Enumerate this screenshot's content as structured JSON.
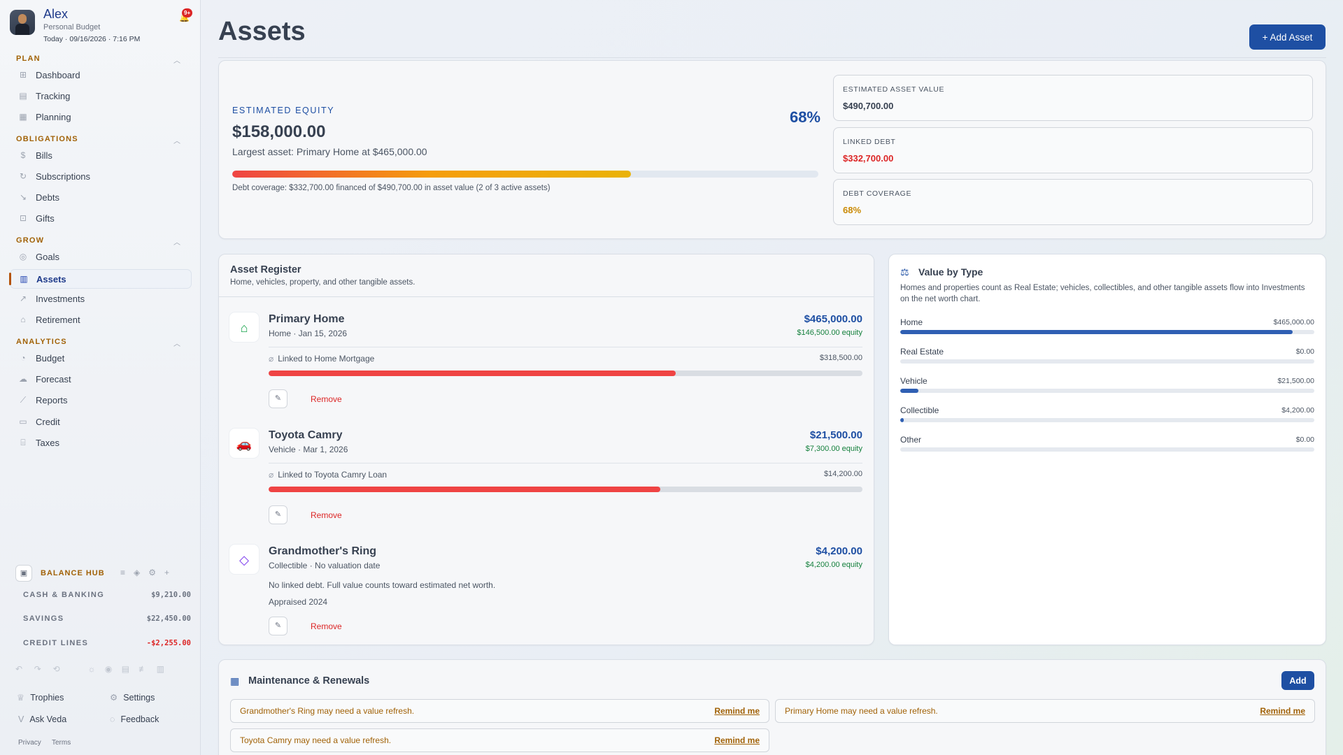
{
  "profile": {
    "name": "Alex",
    "subtitle": "Personal Budget",
    "date": "Today · 09/16/2026 · 7:16 PM",
    "notification_badge": "9+"
  },
  "nav": {
    "plan_label": "PLAN",
    "plan_items": [
      {
        "label": "Dashboard",
        "icon": "grid-icon"
      },
      {
        "label": "Tracking",
        "icon": "receipt-icon"
      },
      {
        "label": "Planning",
        "icon": "calendar-icon"
      }
    ],
    "obligations_label": "OBLIGATIONS",
    "obligations_items": [
      {
        "label": "Bills",
        "icon": "bills-icon"
      },
      {
        "label": "Subscriptions",
        "icon": "refresh-icon"
      },
      {
        "label": "Debts",
        "icon": "chart-down-icon"
      },
      {
        "label": "Gifts",
        "icon": "gift-icon"
      }
    ],
    "grow_label": "GROW",
    "grow_items": [
      {
        "label": "Goals",
        "icon": "target-icon"
      },
      {
        "label": "Assets",
        "icon": "building-icon",
        "active": true
      },
      {
        "label": "Investments",
        "icon": "trend-icon"
      },
      {
        "label": "Retirement",
        "icon": "home-icon"
      }
    ],
    "analytics_label": "ANALYTICS",
    "analytics_items": [
      {
        "label": "Budget",
        "icon": "pie-icon"
      },
      {
        "label": "Forecast",
        "icon": "cloud-icon"
      },
      {
        "label": "Reports",
        "icon": "line-chart-icon"
      },
      {
        "label": "Credit",
        "icon": "card-icon"
      },
      {
        "label": "Taxes",
        "icon": "bank-icon"
      }
    ]
  },
  "balance_hub": {
    "title": "BALANCE HUB",
    "rows": [
      {
        "label": "CASH & BANKING",
        "value": "$9,210.00"
      },
      {
        "label": "SAVINGS",
        "value": "$22,450.00"
      },
      {
        "label": "CREDIT LINES",
        "value": "-$2,255.00"
      }
    ]
  },
  "footer": {
    "trophies": "Trophies",
    "settings": "Settings",
    "ask_veda": "Ask Veda",
    "feedback": "Feedback",
    "privacy": "Privacy",
    "terms": "Terms"
  },
  "header": {
    "title": "Assets",
    "add_button": "+ Add Asset"
  },
  "equity": {
    "label": "ESTIMATED EQUITY",
    "value": "$158,000.00",
    "percent": "68%",
    "largest": "Largest asset: Primary Home at $465,000.00",
    "progress": 0.68,
    "note": "Debt coverage: $332,700.00 financed of $490,700.00 in asset value (2 of 3 active assets)",
    "stats": [
      {
        "label": "ESTIMATED ASSET VALUE",
        "value": "$490,700.00",
        "color": "#374151"
      },
      {
        "label": "LINKED DEBT",
        "value": "$332,700.00",
        "color": "#dc2626"
      },
      {
        "label": "DEBT COVERAGE",
        "value": "68%",
        "color": "#ca8a04"
      }
    ]
  },
  "register": {
    "title": "Asset Register",
    "subtitle": "Home, vehicles, property, and other tangible assets.",
    "remove_label": "Remove",
    "assets": [
      {
        "name": "Primary Home",
        "meta": "Home · Jan 15, 2026",
        "value": "$465,000.00",
        "equity": "$146,500.00 equity",
        "icon": "home-icon",
        "linked": "Linked to Home Mortgage",
        "debt": "$318,500.00",
        "debt_ratio": 0.685
      },
      {
        "name": "Toyota Camry",
        "meta": "Vehicle · Mar 1, 2026",
        "value": "$21,500.00",
        "equity": "$7,300.00 equity",
        "icon": "car-icon",
        "linked": "Linked to Toyota Camry Loan",
        "debt": "$14,200.00",
        "debt_ratio": 0.66
      },
      {
        "name": "Grandmother's Ring",
        "meta": "Collectible · No valuation date",
        "value": "$4,200.00",
        "equity": "$4,200.00 equity",
        "icon": "gem-icon",
        "note": "No linked debt. Full value counts toward estimated net worth.",
        "note2": "Appraised 2024"
      }
    ]
  },
  "value_by_type": {
    "title": "Value by Type",
    "description": "Homes and properties count as Real Estate; vehicles, collectibles, and other tangible assets flow into Investments on the net worth chart.",
    "rows": [
      {
        "label": "Home",
        "value": "$465,000.00",
        "fraction": 0.948
      },
      {
        "label": "Real Estate",
        "value": "$0.00",
        "fraction": 0
      },
      {
        "label": "Vehicle",
        "value": "$21,500.00",
        "fraction": 0.044
      },
      {
        "label": "Collectible",
        "value": "$4,200.00",
        "fraction": 0.009
      },
      {
        "label": "Other",
        "value": "$0.00",
        "fraction": 0
      }
    ]
  },
  "maintenance": {
    "title": "Maintenance & Renewals",
    "add_button": "Add",
    "action_label": "Remind me",
    "reminders": [
      "Grandmother's Ring may need a value refresh.",
      "Primary Home may need a value refresh.",
      "Toyota Camry may need a value refresh."
    ]
  }
}
